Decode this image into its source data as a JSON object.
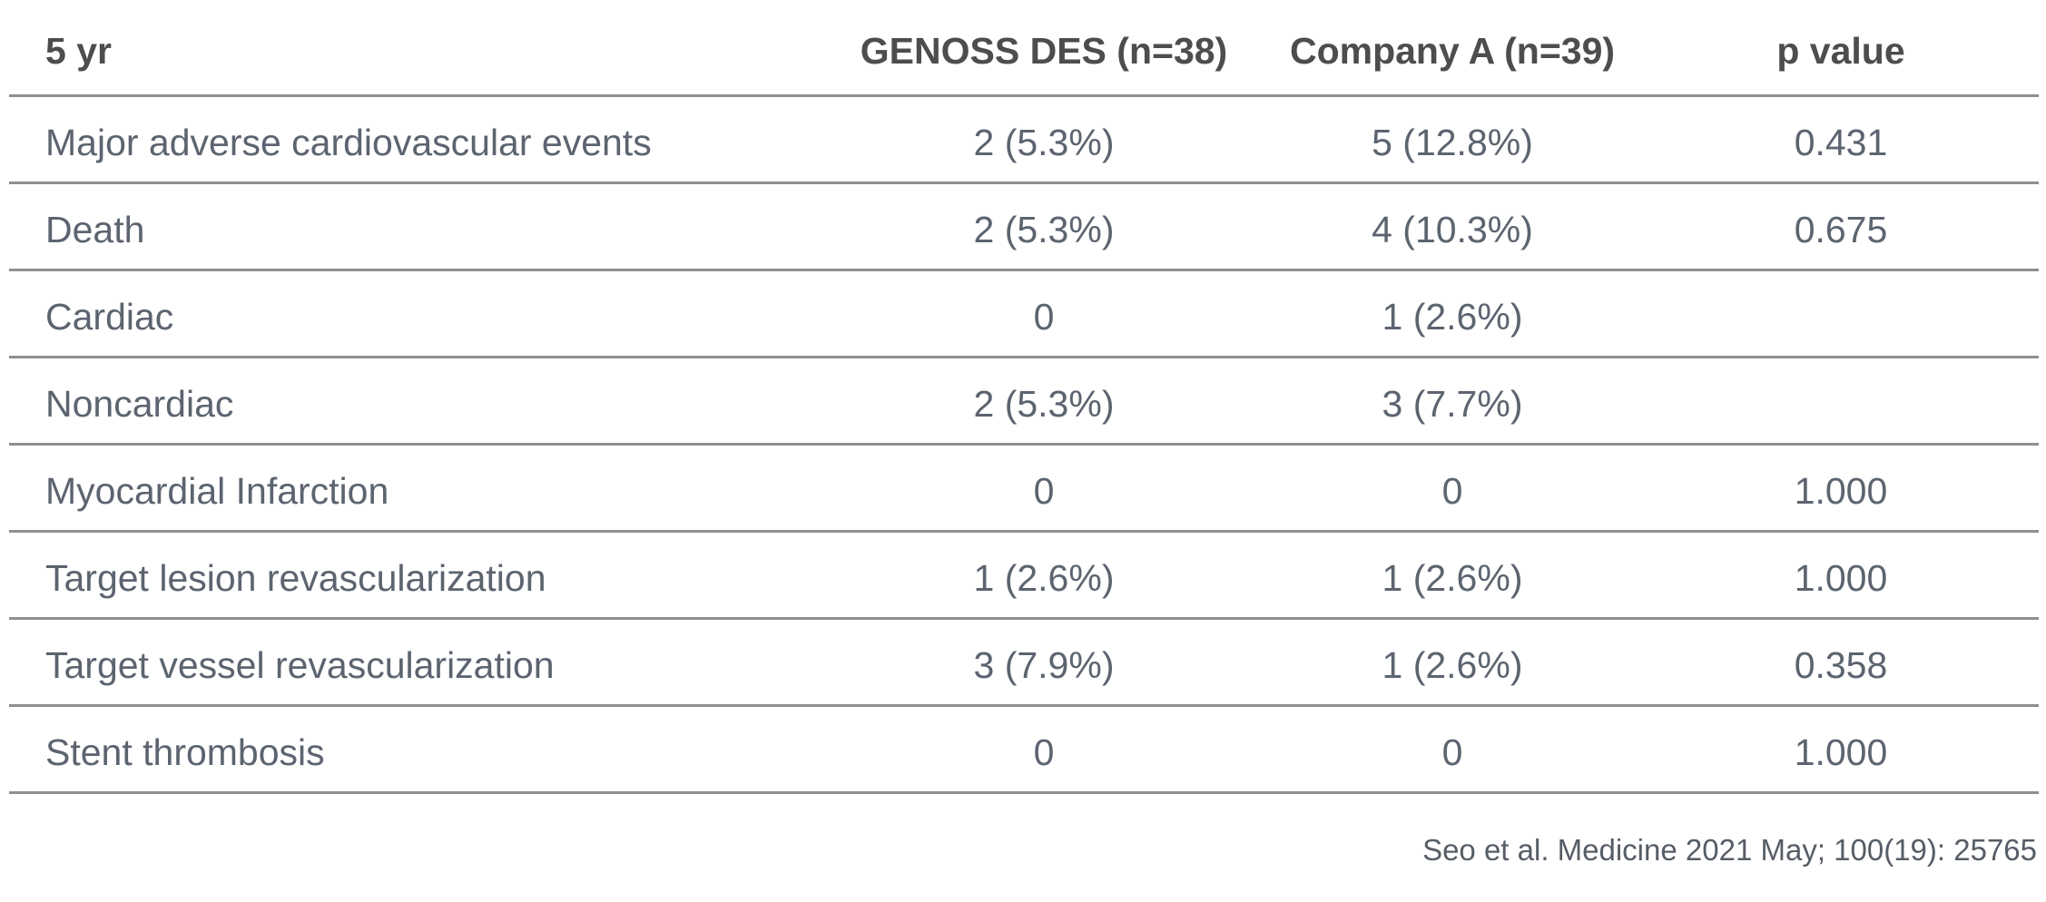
{
  "table": {
    "corner_label": "5 yr",
    "column_headers": [
      "GENOSS DES (n=38)",
      "Company A (n=39)",
      "p value"
    ],
    "rows": [
      {
        "label": "Major adverse cardiovascular events",
        "genoss_des": "2 (5.3%)",
        "company_a": "5 (12.8%)",
        "p_value": "0.431"
      },
      {
        "label": "Death",
        "genoss_des": "2 (5.3%)",
        "company_a": "4 (10.3%)",
        "p_value": "0.675"
      },
      {
        "label": "Cardiac",
        "genoss_des": "0",
        "company_a": "1 (2.6%)",
        "p_value": ""
      },
      {
        "label": "Noncardiac",
        "genoss_des": "2 (5.3%)",
        "company_a": "3 (7.7%)",
        "p_value": ""
      },
      {
        "label": "Myocardial Infarction",
        "genoss_des": "0",
        "company_a": "0",
        "p_value": "1.000"
      },
      {
        "label": "Target lesion revascularization",
        "genoss_des": "1 (2.6%)",
        "company_a": "1 (2.6%)",
        "p_value": "1.000"
      },
      {
        "label": "Target vessel revascularization",
        "genoss_des": "3 (7.9%)",
        "company_a": "1 (2.6%)",
        "p_value": "0.358"
      },
      {
        "label": "Stent thrombosis",
        "genoss_des": "0",
        "company_a": "0",
        "p_value": "1.000"
      }
    ]
  },
  "footer": {
    "citation": "Seo et al. Medicine 2021 May; 100(19): 25765"
  },
  "colors": {
    "header_text": "#4d4d4d",
    "body_text": "#5c6470",
    "rule_line": "#8f8f8f",
    "background": "#ffffff"
  }
}
